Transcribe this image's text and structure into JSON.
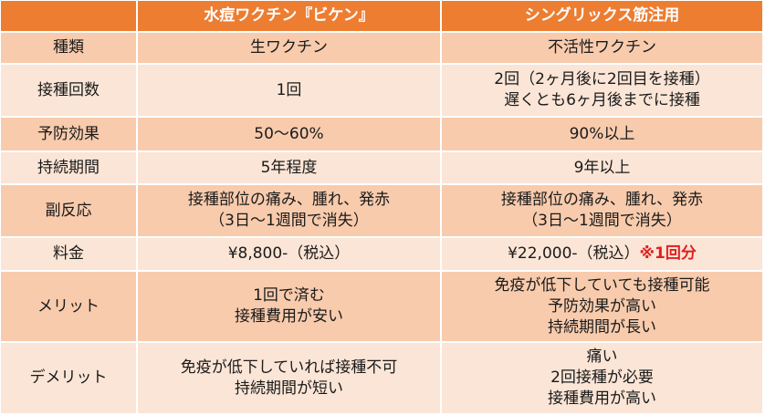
{
  "header": {
    "col0": "",
    "col1": "水痘ワクチン『ビケン』",
    "col2": "シングリックス筋注用"
  },
  "rows": [
    {
      "label": "種類",
      "c1": [
        "生ワクチン"
      ],
      "c2": [
        "不活性ワクチン"
      ]
    },
    {
      "label": "接種回数",
      "c1": [
        "1回"
      ],
      "c2": [
        "2回（2ヶ月後に2回目を接種）",
        "遅くとも6ヶ月後までに接種"
      ]
    },
    {
      "label": "予防効果",
      "c1": [
        "50～60%"
      ],
      "c2": [
        "90%以上"
      ]
    },
    {
      "label": "持続期間",
      "c1": [
        "5年程度"
      ],
      "c2": [
        "9年以上"
      ]
    },
    {
      "label": "副反応",
      "c1": [
        "接種部位の痛み、腫れ、発赤",
        "（3日～1週間で消失）"
      ],
      "c2": [
        "接種部位の痛み、腫れ、発赤",
        "（3日～1週間で消失）"
      ]
    },
    {
      "label": "料金",
      "c1": [
        "¥8,800-（税込）"
      ],
      "c2": [
        "¥22,000-（税込）"
      ],
      "c2_note": "※1回分"
    },
    {
      "label": "メリット",
      "c1": [
        "1回で済む",
        "接種費用が安い"
      ],
      "c2": [
        "免疫が低下していても接種可能",
        "予防効果が高い",
        "持続期間が長い"
      ]
    },
    {
      "label": "デメリット",
      "c1": [
        "免疫が低下していれば接種不可",
        "持続期間が短い"
      ],
      "c2": [
        "痛い",
        "2回接種が必要",
        "接種費用が高い"
      ]
    }
  ],
  "colors": {
    "header_bg": "#ed7d31",
    "row_dark": "#f8cbad",
    "row_light": "#fbe5d6",
    "note_text": "#e02020"
  }
}
